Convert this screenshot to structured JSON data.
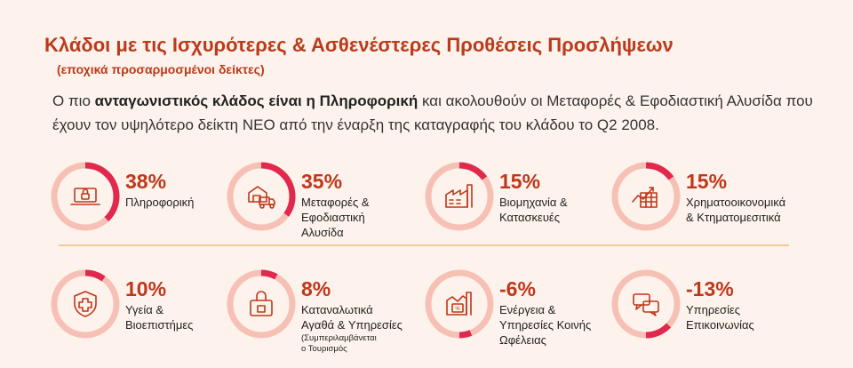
{
  "header": {
    "title": "Κλάδοι με τις Ισχυρότερες & Ασθενέστερες Προθέσεις Προσλήψεων",
    "subtitle": "(εποχικά προσαρμοσμένοι δείκτες)",
    "intro_pre": "Ο πιο ",
    "intro_bold": "ανταγωνιστικός κλάδος είναι η Πληροφορική",
    "intro_post": " και ακολουθούν οι Μεταφορές & Εφοδιαστική Αλυσίδα που έχουν τον υψηλότερο δείκτη ΝΕΟ από την έναρξη της καταγραφής του κλάδου το Q2 2008."
  },
  "colors": {
    "accent": "#c0361b",
    "ring_bg": "#f7c0b5",
    "ring_fill": "#e0294d",
    "icon": "#c0361b",
    "divider": "#f0c79f"
  },
  "sectors": [
    {
      "value": 38,
      "value_label": "38%",
      "label_lines": [
        "Πληροφορική"
      ],
      "note_lines": [],
      "icon": "laptop-lock-icon"
    },
    {
      "value": 35,
      "value_label": "35%",
      "label_lines": [
        "Μεταφορές &",
        "Εφοδιαστική",
        "Αλυσίδα"
      ],
      "note_lines": [],
      "icon": "truck-warehouse-icon"
    },
    {
      "value": 15,
      "value_label": "15%",
      "label_lines": [
        "Βιομηχανία &",
        "Κατασκευές"
      ],
      "note_lines": [],
      "icon": "factory-icon"
    },
    {
      "value": 15,
      "value_label": "15%",
      "label_lines": [
        "Χρηματοοικονομικά",
        "& Κτηματομεσιτικά"
      ],
      "note_lines": [],
      "icon": "chart-growth-icon"
    },
    {
      "value": 10,
      "value_label": "10%",
      "label_lines": [
        "Υγεία &",
        "Βιοεπιστήμες"
      ],
      "note_lines": [],
      "icon": "medical-shield-icon"
    },
    {
      "value": 8,
      "value_label": "8%",
      "label_lines": [
        "Καταναλωτικά",
        "Αγαθά & Υπηρεσίες"
      ],
      "note_lines": [
        "(Συμπεριλαμβάνεται",
        "ο Τουρισμός"
      ],
      "icon": "shopping-bag-icon"
    },
    {
      "value": -6,
      "value_label": "-6%",
      "label_lines": [
        "Ενέργεια &",
        "Υπηρεσίες Κοινής",
        "Ωφέλειας"
      ],
      "note_lines": [],
      "icon": "energy-percent-icon"
    },
    {
      "value": -13,
      "value_label": "-13%",
      "label_lines": [
        "Υπηρεσίες",
        "Επικοινωνίας"
      ],
      "note_lines": [],
      "icon": "speech-bubbles-icon"
    }
  ]
}
